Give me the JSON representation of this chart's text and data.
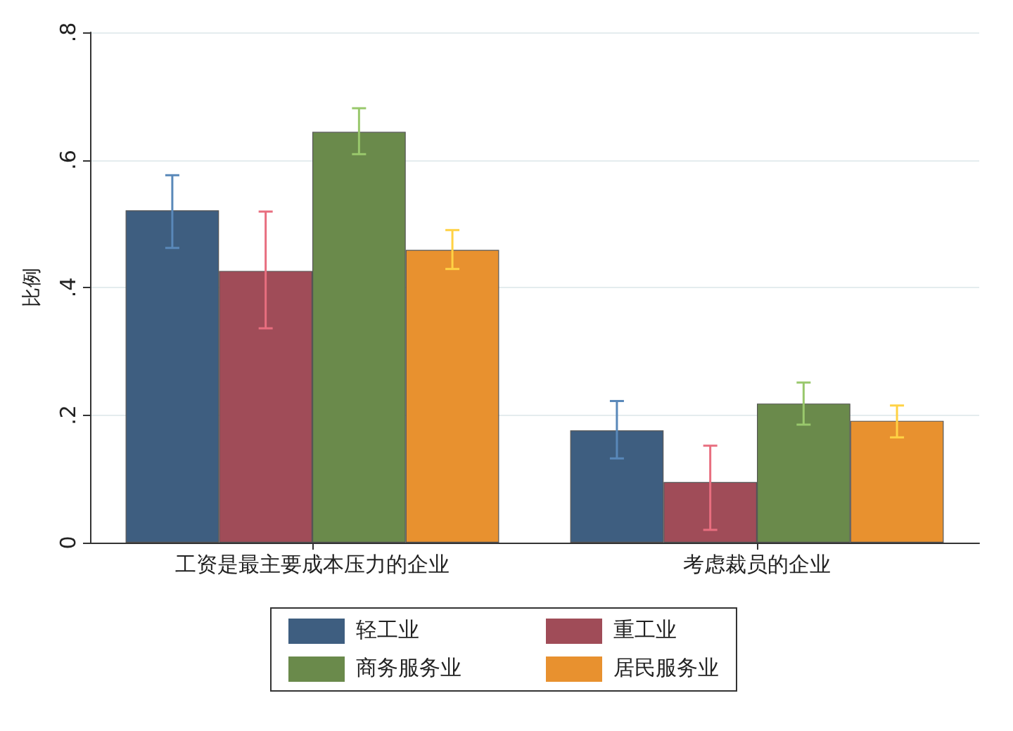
{
  "chart_data": {
    "type": "bar",
    "ylabel": "比例",
    "categories": [
      "工资是最主要成本压力的企业",
      "考虑裁员的企业"
    ],
    "series": [
      {
        "name": "轻工业",
        "color": "#3e5e80",
        "values": [
          0.521,
          0.176
        ],
        "errors": [
          [
            0.462,
            0.576
          ],
          [
            0.132,
            0.222
          ]
        ]
      },
      {
        "name": "重工业",
        "color": "#a04c58",
        "values": [
          0.426,
          0.095
        ],
        "errors": [
          [
            0.336,
            0.519
          ],
          [
            0.02,
            0.152
          ]
        ]
      },
      {
        "name": "商务服务业",
        "color": "#6a8a4b",
        "values": [
          0.644,
          0.218
        ],
        "errors": [
          [
            0.609,
            0.681
          ],
          [
            0.185,
            0.251
          ]
        ]
      },
      {
        "name": "居民服务业",
        "color": "#e8912f",
        "values": [
          0.459,
          0.191
        ],
        "errors": [
          [
            0.429,
            0.49
          ],
          [
            0.165,
            0.215
          ]
        ]
      }
    ],
    "ylim": [
      0,
      0.8
    ],
    "yticks": [
      0,
      {
        "value": 0.2,
        "label": ".2"
      },
      {
        "value": 0.4,
        "label": ".4"
      },
      {
        "value": 0.6,
        "label": ".6"
      },
      {
        "value": 0.8,
        "label": ".8"
      }
    ],
    "grid": "y",
    "legend": "bottom"
  }
}
